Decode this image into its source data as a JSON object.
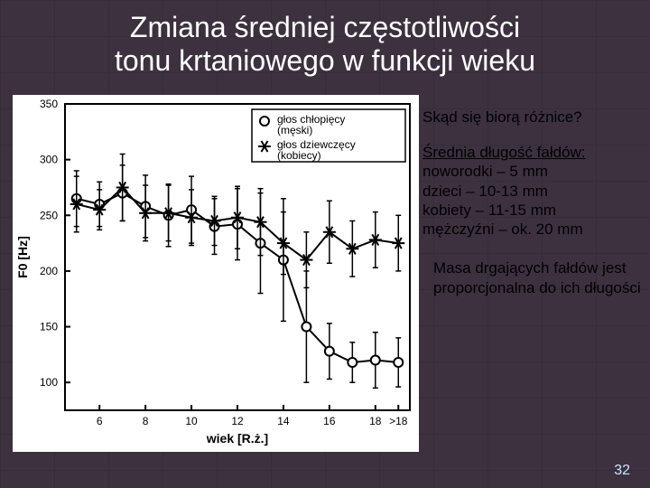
{
  "title_line1": "Zmiana średniej częstotliwości",
  "title_line2": "tonu krtaniowego w funkcji wieku",
  "question": "Skąd się biorą różnice?",
  "folds_heading": "Średnia długość fałdów:",
  "folds_lines": [
    "noworodki – 5 mm",
    "dzieci – 10-13 mm",
    "kobiety – 11-15 mm",
    "mężczyźni – ok. 20 mm"
  ],
  "mass_text": "Masa drgających fałdów jest proporcjonalna do ich długości",
  "page_number": "32",
  "chart": {
    "type": "line-errorbar",
    "background_color": "#ffffff",
    "axis_color": "#000000",
    "ytick_step": 50,
    "ylim": [
      75,
      350
    ],
    "xlabel": "wiek [R.ż.]",
    "ylabel": "F0 [Hz]",
    "xticks": [
      6,
      8,
      10,
      12,
      14,
      16,
      18,
      ">18"
    ],
    "label_fontsize": 14,
    "tick_fontsize": 12,
    "line_width": 2,
    "marker_size": 5,
    "errorbar_cap": 6,
    "legend": {
      "position": "top-right",
      "items": [
        {
          "marker": "circle",
          "label1": "głos chłopięcy",
          "label2": "(męski)"
        },
        {
          "marker": "star",
          "label1": "głos dziewczęcy",
          "label2": "(kobiecy)"
        }
      ]
    },
    "series": [
      {
        "name": "chlopiecy",
        "marker": "circle",
        "color": "#000000",
        "x": [
          5,
          6,
          7,
          8,
          9,
          10,
          11,
          12,
          13,
          14,
          15,
          16,
          17,
          18,
          19
        ],
        "y": [
          265,
          260,
          270,
          258,
          250,
          255,
          240,
          242,
          225,
          210,
          150,
          128,
          118,
          120,
          118
        ],
        "err": [
          25,
          20,
          25,
          28,
          28,
          30,
          25,
          32,
          45,
          55,
          50,
          25,
          18,
          25,
          22
        ]
      },
      {
        "name": "dziewczecy",
        "marker": "star",
        "color": "#000000",
        "x": [
          5,
          6,
          7,
          8,
          9,
          10,
          11,
          12,
          13,
          14,
          15,
          16,
          17,
          18,
          19
        ],
        "y": [
          260,
          255,
          275,
          252,
          252,
          248,
          245,
          248,
          244,
          225,
          210,
          235,
          220,
          228,
          225
        ],
        "err": [
          25,
          18,
          30,
          25,
          25,
          25,
          22,
          28,
          30,
          28,
          25,
          28,
          25,
          25,
          25
        ]
      }
    ]
  }
}
